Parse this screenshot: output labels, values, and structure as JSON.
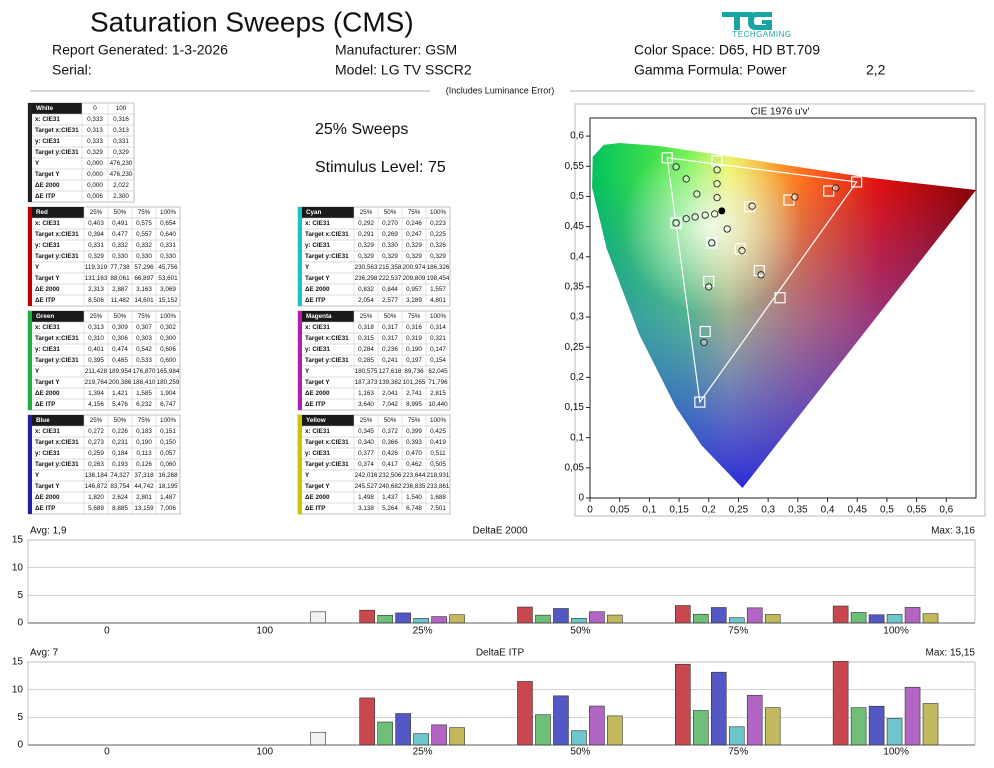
{
  "header": {
    "title": "Saturation Sweeps (CMS)",
    "report_generated": "Report Generated: 1-3-2026",
    "serial": "Serial:",
    "manufacturer": "Manufacturer: GSM",
    "model": "Model: LG TV SSCR2",
    "color_space": "Color Space: D65, HD BT.709",
    "gamma": "Gamma Formula: Power",
    "gamma_value": "2,2",
    "logo": "TECHGAMING",
    "note": "(Includes Luminance Error)",
    "sweeps": "25% Sweeps",
    "stimulus": "Stimulus Level: 75"
  },
  "tables": [
    {
      "title": "White",
      "color": "#222222",
      "columns": [
        "0",
        "100"
      ],
      "rows": [
        {
          "label": "x: CIE31",
          "values": [
            "0,333",
            "0,316"
          ]
        },
        {
          "label": "Target x:CIE31",
          "values": [
            "0,313",
            "0,313"
          ]
        },
        {
          "label": "y: CIE31",
          "values": [
            "0,333",
            "0,331"
          ]
        },
        {
          "label": "Target y:CIE31",
          "values": [
            "0,329",
            "0,329"
          ]
        },
        {
          "label": "Y",
          "values": [
            "0,000",
            "476,230"
          ]
        },
        {
          "label": "Target Y",
          "values": [
            "0,000",
            "476,230"
          ]
        },
        {
          "label": "ΔE 2000",
          "values": [
            "0,000",
            "2,022"
          ]
        },
        {
          "label": "ΔE ITP",
          "values": [
            "0,006",
            "2,300"
          ]
        }
      ]
    },
    {
      "title": "Red",
      "color": "#c00000",
      "columns": [
        "25%",
        "50%",
        "75%",
        "100%"
      ],
      "rows": [
        {
          "label": "x: CIE31",
          "values": [
            "0,403",
            "0,491",
            "0,575",
            "0,654"
          ]
        },
        {
          "label": "Target x:CIE31",
          "values": [
            "0,394",
            "0,477",
            "0,557",
            "0,640"
          ]
        },
        {
          "label": "y: CIE31",
          "values": [
            "0,331",
            "0,332",
            "0,332",
            "0,331"
          ]
        },
        {
          "label": "Target y:CIE31",
          "values": [
            "0,329",
            "0,330",
            "0,330",
            "0,330"
          ]
        },
        {
          "label": "Y",
          "values": [
            "119,319",
            "77,738",
            "57,296",
            "45,756"
          ]
        },
        {
          "label": "Target Y",
          "values": [
            "131,163",
            "88,061",
            "66,897",
            "53,601"
          ]
        },
        {
          "label": "ΔE 2000",
          "values": [
            "2,313",
            "2,887",
            "3,163",
            "3,069"
          ]
        },
        {
          "label": "ΔE ITP",
          "values": [
            "8,506",
            "11,482",
            "14,601",
            "15,152"
          ]
        }
      ]
    },
    {
      "title": "Cyan",
      "color": "#20c0c8",
      "columns": [
        "25%",
        "50%",
        "75%",
        "100%"
      ],
      "rows": [
        {
          "label": "x: CIE31",
          "values": [
            "0,292",
            "0,270",
            "0,246",
            "0,223"
          ]
        },
        {
          "label": "Target x:CIE31",
          "values": [
            "0,291",
            "0,269",
            "0,247",
            "0,225"
          ]
        },
        {
          "label": "y: CIE31",
          "values": [
            "0,329",
            "0,330",
            "0,329",
            "0,326"
          ]
        },
        {
          "label": "Target y:CIE31",
          "values": [
            "0,329",
            "0,329",
            "0,329",
            "0,329"
          ]
        },
        {
          "label": "Y",
          "values": [
            "230,563",
            "215,358",
            "200,974",
            "186,326"
          ]
        },
        {
          "label": "Target Y",
          "values": [
            "236,298",
            "222,537",
            "209,809",
            "198,454"
          ]
        },
        {
          "label": "ΔE 2000",
          "values": [
            "0,832",
            "0,844",
            "0,957",
            "1,557"
          ]
        },
        {
          "label": "ΔE ITP",
          "values": [
            "2,054",
            "2,577",
            "3,289",
            "4,801"
          ]
        }
      ]
    },
    {
      "title": "Green",
      "color": "#20b040",
      "columns": [
        "25%",
        "50%",
        "75%",
        "100%"
      ],
      "rows": [
        {
          "label": "x: CIE31",
          "values": [
            "0,313",
            "0,309",
            "0,307",
            "0,302"
          ]
        },
        {
          "label": "Target x:CIE31",
          "values": [
            "0,310",
            "0,306",
            "0,303",
            "0,300"
          ]
        },
        {
          "label": "y: CIE31",
          "values": [
            "0,401",
            "0,474",
            "0,542",
            "0,606"
          ]
        },
        {
          "label": "Target y:CIE31",
          "values": [
            "0,395",
            "0,465",
            "0,533",
            "0,600"
          ]
        },
        {
          "label": "Y",
          "values": [
            "211,428",
            "189,954",
            "176,870",
            "165,984"
          ]
        },
        {
          "label": "Target Y",
          "values": [
            "219,764",
            "200,386",
            "188,410",
            "180,259"
          ]
        },
        {
          "label": "ΔE 2000",
          "values": [
            "1,394",
            "1,421",
            "1,585",
            "1,904"
          ]
        },
        {
          "label": "ΔE ITP",
          "values": [
            "4,156",
            "5,476",
            "6,232",
            "6,747"
          ]
        }
      ]
    },
    {
      "title": "Magenta",
      "color": "#b020b0",
      "columns": [
        "25%",
        "50%",
        "75%",
        "100%"
      ],
      "rows": [
        {
          "label": "x: CIE31",
          "values": [
            "0,318",
            "0,317",
            "0,316",
            "0,314"
          ]
        },
        {
          "label": "Target x:CIE31",
          "values": [
            "0,315",
            "0,317",
            "0,319",
            "0,321"
          ]
        },
        {
          "label": "y: CIE31",
          "values": [
            "0,284",
            "0,236",
            "0,190",
            "0,147"
          ]
        },
        {
          "label": "Target y:CIE31",
          "values": [
            "0,285",
            "0,241",
            "0,197",
            "0,154"
          ]
        },
        {
          "label": "Y",
          "values": [
            "180,575",
            "127,618",
            "89,736",
            "62,045"
          ]
        },
        {
          "label": "Target Y",
          "values": [
            "187,373",
            "139,382",
            "101,265",
            "71,796"
          ]
        },
        {
          "label": "ΔE 2000",
          "values": [
            "1,163",
            "2,041",
            "2,741",
            "2,815"
          ]
        },
        {
          "label": "ΔE ITP",
          "values": [
            "3,640",
            "7,042",
            "8,995",
            "10,440"
          ]
        }
      ]
    },
    {
      "title": "Blue",
      "color": "#2020a0",
      "columns": [
        "25%",
        "50%",
        "75%",
        "100%"
      ],
      "rows": [
        {
          "label": "x: CIE31",
          "values": [
            "0,272",
            "0,226",
            "0,183",
            "0,151"
          ]
        },
        {
          "label": "Target x:CIE31",
          "values": [
            "0,273",
            "0,231",
            "0,190",
            "0,150"
          ]
        },
        {
          "label": "y: CIE31",
          "values": [
            "0,259",
            "0,184",
            "0,113",
            "0,057"
          ]
        },
        {
          "label": "Target y:CIE31",
          "values": [
            "0,263",
            "0,193",
            "0,126",
            "0,060"
          ]
        },
        {
          "label": "Y",
          "values": [
            "136,184",
            "74,327",
            "37,318",
            "16,268"
          ]
        },
        {
          "label": "Target Y",
          "values": [
            "146,872",
            "83,754",
            "44,742",
            "18,195"
          ]
        },
        {
          "label": "ΔE 2000",
          "values": [
            "1,820",
            "2,624",
            "2,801",
            "1,487"
          ]
        },
        {
          "label": "ΔE ITP",
          "values": [
            "5,689",
            "8,885",
            "13,159",
            "7,006"
          ]
        }
      ]
    },
    {
      "title": "Yellow",
      "color": "#c8c800",
      "columns": [
        "25%",
        "50%",
        "75%",
        "100%"
      ],
      "rows": [
        {
          "label": "x: CIE31",
          "values": [
            "0,345",
            "0,372",
            "0,399",
            "0,425"
          ]
        },
        {
          "label": "Target x:CIE31",
          "values": [
            "0,340",
            "0,366",
            "0,393",
            "0,419"
          ]
        },
        {
          "label": "y: CIE31",
          "values": [
            "0,377",
            "0,426",
            "0,470",
            "0,511"
          ]
        },
        {
          "label": "Target y:CIE31",
          "values": [
            "0,374",
            "0,417",
            "0,462",
            "0,505"
          ]
        },
        {
          "label": "Y",
          "values": [
            "242,016",
            "232,506",
            "223,644",
            "218,931"
          ]
        },
        {
          "label": "Target Y",
          "values": [
            "245,527",
            "240,682",
            "236,835",
            "233,861"
          ]
        },
        {
          "label": "ΔE 2000",
          "values": [
            "1,498",
            "1,437",
            "1,540",
            "1,688"
          ]
        },
        {
          "label": "ΔE ITP",
          "values": [
            "3,138",
            "5,264",
            "6,748",
            "7,501"
          ]
        }
      ]
    }
  ],
  "chart_data": [
    {
      "type": "scatter",
      "title": "CIE 1976 u'v'",
      "xlim": [
        0,
        0.65
      ],
      "ylim": [
        0,
        0.63
      ],
      "xticks": [
        0,
        {
          "value": 0.05,
          "label": "0,05"
        },
        {
          "value": 0.1,
          "label": "0,1"
        },
        {
          "value": 0.15,
          "label": "0,15"
        },
        {
          "value": 0.2,
          "label": "0,2"
        },
        {
          "value": 0.25,
          "label": "0,25"
        },
        {
          "value": 0.3,
          "label": "0,3"
        },
        {
          "value": 0.35,
          "label": "0,35"
        },
        {
          "value": 0.4,
          "label": "0,4"
        },
        {
          "value": 0.45,
          "label": "0,45"
        },
        {
          "value": 0.5,
          "label": "0,5"
        },
        {
          "value": 0.55,
          "label": "0,55"
        },
        {
          "value": 0.6,
          "label": "0,6"
        }
      ],
      "yticks": [
        0,
        {
          "value": 0.05,
          "label": "0,05"
        },
        {
          "value": 0.1,
          "label": "0,1"
        },
        {
          "value": 0.15,
          "label": "0,15"
        },
        {
          "value": 0.2,
          "label": "0,2"
        },
        {
          "value": 0.25,
          "label": "0,25"
        },
        {
          "value": 0.3,
          "label": "0,3"
        },
        {
          "value": 0.35,
          "label": "0,35"
        },
        {
          "value": 0.4,
          "label": "0,4"
        },
        {
          "value": 0.45,
          "label": "0,45"
        },
        {
          "value": 0.5,
          "label": "0,5"
        },
        {
          "value": 0.55,
          "label": "0,55"
        },
        {
          "value": 0.6,
          "label": "0,6"
        }
      ],
      "targets": {
        "x": [
          0.13,
          0.214,
          0.449,
          0.402,
          0.335,
          0.269,
          0.145,
          0.205,
          0.253,
          0.285,
          0.2,
          0.32,
          0.194,
          0.185
        ],
        "y": [
          0.564,
          0.559,
          0.524,
          0.509,
          0.494,
          0.483,
          0.456,
          0.423,
          0.413,
          0.377,
          0.359,
          0.332,
          0.276,
          0.159
        ]
      },
      "measured": {
        "x": [
          0.145,
          0.162,
          0.18,
          0.214,
          0.214,
          0.214,
          0.145,
          0.162,
          0.177,
          0.194,
          0.21,
          0.205,
          0.231,
          0.256,
          0.273,
          0.345,
          0.414,
          0.288,
          0.2,
          0.192
        ],
        "y": [
          0.549,
          0.529,
          0.504,
          0.544,
          0.521,
          0.498,
          0.456,
          0.463,
          0.466,
          0.469,
          0.471,
          0.423,
          0.446,
          0.41,
          0.484,
          0.499,
          0.514,
          0.37,
          0.35,
          0.258
        ]
      },
      "white_point": {
        "x": 0.222,
        "y": 0.476
      }
    },
    {
      "type": "bar",
      "title": "DeltaE 2000",
      "avg": "Avg: 1,9",
      "max": "Max: 3,16",
      "categories": [
        "0",
        "100",
        "25%",
        "50%",
        "75%",
        "100%"
      ],
      "ylim": [
        0,
        15
      ],
      "yticks": [
        0,
        5,
        10,
        15
      ],
      "grid": true,
      "series": [
        {
          "color": "#f2f2f2",
          "values": [
            null,
            2.022,
            null,
            null,
            null,
            null
          ]
        },
        {
          "color": "#c9484d",
          "values": [
            null,
            null,
            2.313,
            2.887,
            3.163,
            3.069
          ]
        },
        {
          "color": "#6fbf78",
          "values": [
            null,
            null,
            1.394,
            1.421,
            1.585,
            1.904
          ]
        },
        {
          "color": "#5458c4",
          "values": [
            null,
            null,
            1.82,
            2.624,
            2.801,
            1.487
          ]
        },
        {
          "color": "#6cc6cc",
          "values": [
            null,
            null,
            0.832,
            0.844,
            0.957,
            1.557
          ]
        },
        {
          "color": "#b265c2",
          "values": [
            null,
            null,
            1.163,
            2.041,
            2.741,
            2.815
          ]
        },
        {
          "color": "#c2b95c",
          "values": [
            null,
            null,
            1.498,
            1.437,
            1.54,
            1.688
          ]
        }
      ]
    },
    {
      "type": "bar",
      "title": "DeltaE ITP",
      "avg": "Avg: 7",
      "max": "Max: 15,15",
      "categories": [
        "0",
        "100",
        "25%",
        "50%",
        "75%",
        "100%"
      ],
      "ylim": [
        0,
        15
      ],
      "yticks": [
        0,
        5,
        10,
        15
      ],
      "grid": true,
      "series": [
        {
          "color": "#f2f2f2",
          "values": [
            null,
            2.3,
            null,
            null,
            null,
            null
          ]
        },
        {
          "color": "#c9484d",
          "values": [
            null,
            null,
            8.506,
            11.482,
            14.601,
            15.152
          ]
        },
        {
          "color": "#6fbf78",
          "values": [
            null,
            null,
            4.156,
            5.476,
            6.232,
            6.747
          ]
        },
        {
          "color": "#5458c4",
          "values": [
            null,
            null,
            5.689,
            8.885,
            13.159,
            7.006
          ]
        },
        {
          "color": "#6cc6cc",
          "values": [
            null,
            null,
            2.054,
            2.577,
            3.289,
            4.801
          ]
        },
        {
          "color": "#b265c2",
          "values": [
            null,
            null,
            3.64,
            7.042,
            8.995,
            10.44
          ]
        },
        {
          "color": "#c2b95c",
          "values": [
            null,
            null,
            3.138,
            5.264,
            6.748,
            7.501
          ]
        }
      ]
    }
  ]
}
